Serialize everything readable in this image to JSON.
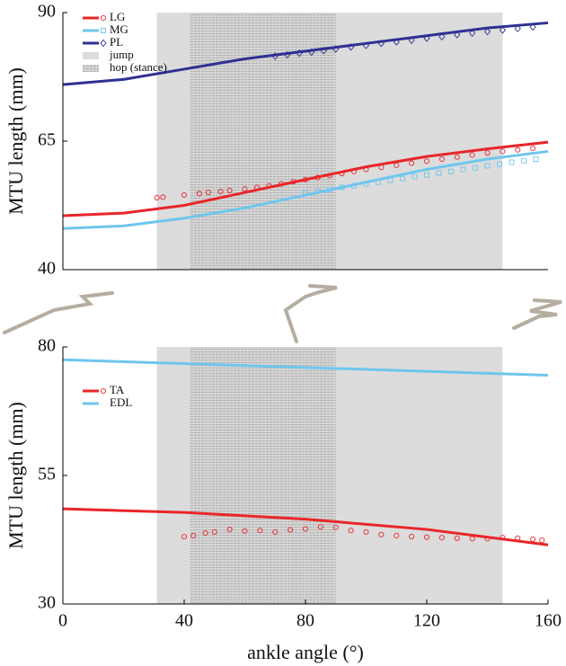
{
  "chart_data": [
    {
      "type": "line",
      "ylabel": "MTU length (mm)",
      "xlim": [
        0,
        160
      ],
      "ylim": [
        40,
        90
      ],
      "yticks": [
        40,
        65,
        90
      ],
      "legend": "upper left",
      "bands": [
        {
          "name": "jump",
          "range": [
            31,
            145
          ],
          "color": "#dcdcdc",
          "pattern": false
        },
        {
          "name": "hop (stance)",
          "range": [
            42,
            90
          ],
          "color": "#c8c8c8",
          "pattern": true
        }
      ],
      "series": [
        {
          "name": "LG",
          "color": "#e8262a",
          "marker": "circle",
          "x": [
            0,
            20,
            40,
            60,
            80,
            100,
            120,
            140,
            160
          ],
          "values": [
            50.5,
            51,
            52.5,
            55,
            57.5,
            60,
            62,
            63.5,
            64.8
          ],
          "points": {
            "x": [
              31,
              33,
              40,
              45,
              48,
              52,
              55,
              60,
              64,
              68,
              72,
              76,
              80,
              84,
              88,
              92,
              96,
              100,
              105,
              110,
              115,
              120,
              125,
              130,
              135,
              140,
              145,
              150,
              155
            ],
            "values": [
              54,
              54.1,
              54.5,
              54.8,
              55,
              55.2,
              55.4,
              55.7,
              56,
              56.3,
              56.7,
              57.1,
              57.5,
              57.9,
              58.3,
              58.7,
              59.1,
              59.5,
              59.9,
              60.3,
              60.7,
              61.1,
              61.5,
              61.9,
              62.3,
              62.7,
              63,
              63.3,
              63.6
            ]
          }
        },
        {
          "name": "MG",
          "color": "#6ec6ee",
          "marker": "square",
          "x": [
            0,
            20,
            40,
            60,
            80,
            100,
            120,
            140,
            160
          ],
          "values": [
            48,
            48.5,
            50,
            52,
            54.5,
            57,
            59.5,
            61.5,
            63
          ],
          "points": {
            "x": [
              80,
              84,
              88,
              92,
              96,
              100,
              104,
              108,
              112,
              116,
              120,
              124,
              128,
              132,
              136,
              140,
              144,
              148,
              152,
              156
            ],
            "values": [
              54.9,
              55.3,
              55.6,
              56,
              56.3,
              56.7,
              57,
              57.4,
              57.7,
              58.1,
              58.4,
              58.8,
              59.1,
              59.5,
              59.8,
              60.2,
              60.5,
              60.9,
              61.2,
              61.5
            ]
          }
        },
        {
          "name": "PL",
          "color": "#2e3192",
          "marker": "diamond",
          "x": [
            0,
            20,
            40,
            60,
            80,
            100,
            120,
            140,
            160
          ],
          "values": [
            76,
            77,
            79,
            81,
            82.5,
            84,
            85.5,
            87,
            88
          ],
          "points": {
            "x": [
              70,
              74,
              78,
              82,
              86,
              90,
              95,
              100,
              105,
              110,
              115,
              120,
              125,
              130,
              135,
              140,
              145,
              150,
              155
            ],
            "values": [
              81.5,
              81.8,
              82.1,
              82.3,
              82.6,
              82.9,
              83.3,
              83.6,
              84,
              84.3,
              84.6,
              85,
              85.3,
              85.7,
              86,
              86.3,
              86.6,
              86.9,
              87.2
            ]
          }
        }
      ]
    },
    {
      "type": "line",
      "ylabel": "MTU length (mm)",
      "xlabel": "ankle angle (°)",
      "xlim": [
        0,
        160
      ],
      "xticks": [
        0,
        40,
        80,
        120,
        160
      ],
      "ylim": [
        30,
        80
      ],
      "yticks": [
        30,
        55,
        80
      ],
      "legend": "center left",
      "bands": [
        {
          "name": "jump",
          "range": [
            31,
            145
          ],
          "color": "#dcdcdc",
          "pattern": false
        },
        {
          "name": "hop (stance)",
          "range": [
            42,
            90
          ],
          "color": "#c8c8c8",
          "pattern": true
        }
      ],
      "series": [
        {
          "name": "TA",
          "color": "#e8262a",
          "marker": "circle",
          "x": [
            0,
            40,
            80,
            120,
            160
          ],
          "values": [
            48.5,
            47.8,
            46.5,
            44.5,
            41.5
          ],
          "points": {
            "x": [
              40,
              43,
              47,
              50,
              55,
              60,
              65,
              70,
              75,
              80,
              85,
              90,
              95,
              100,
              105,
              110,
              115,
              120,
              125,
              130,
              135,
              140,
              145,
              150,
              155,
              158
            ],
            "values": [
              43.1,
              43.3,
              43.8,
              44,
              44.5,
              44.2,
              44.3,
              44,
              44.4,
              44.6,
              45,
              44.9,
              44.3,
              44,
              43.5,
              43.3,
              43.1,
              43,
              42.9,
              42.8,
              42.7,
              42.7,
              42.9,
              42.8,
              42.6,
              42.4
            ]
          }
        },
        {
          "name": "EDL",
          "color": "#6ec6ee",
          "marker": null,
          "x": [
            0,
            160
          ],
          "values": [
            77.5,
            74.5
          ]
        }
      ]
    }
  ]
}
